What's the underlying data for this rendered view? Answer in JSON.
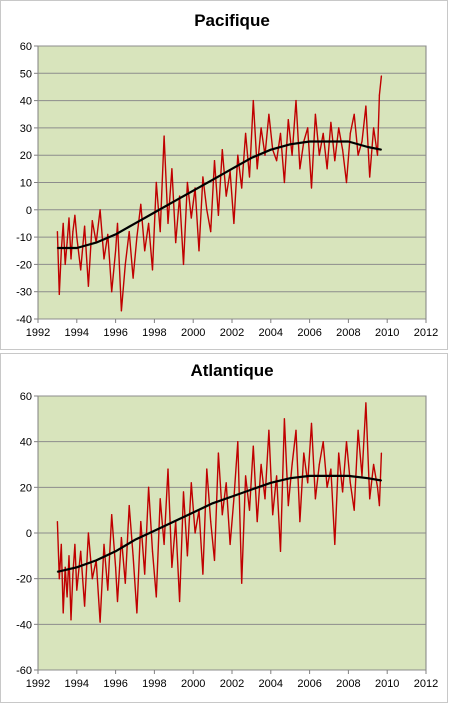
{
  "colors": {
    "plot_background": "#d8e4bc",
    "series": "#c00000",
    "trend": "#000000",
    "grid": "#8c8c8c"
  },
  "chart_data": [
    {
      "type": "line",
      "title": "Pacifique",
      "xlabel": "",
      "ylabel": "",
      "xlim": [
        1992,
        2012
      ],
      "ylim": [
        -40,
        60
      ],
      "xticks": [
        1992,
        1994,
        1996,
        1998,
        2000,
        2002,
        2004,
        2006,
        2008,
        2010,
        2012
      ],
      "yticks": [
        -40,
        -30,
        -20,
        -10,
        0,
        10,
        20,
        30,
        40,
        50,
        60
      ],
      "grid": "horizontal",
      "legend": "none",
      "series": [
        {
          "style": "red-line",
          "x": [
            1993.0,
            1993.1,
            1993.2,
            1993.3,
            1993.4,
            1993.5,
            1993.6,
            1993.7,
            1993.8,
            1993.9,
            1994.0,
            1994.2,
            1994.4,
            1994.6,
            1994.8,
            1995.0,
            1995.2,
            1995.4,
            1995.6,
            1995.8,
            1996.0,
            1996.1,
            1996.3,
            1996.5,
            1996.7,
            1996.9,
            1997.1,
            1997.3,
            1997.5,
            1997.7,
            1997.9,
            1998.1,
            1998.3,
            1998.5,
            1998.7,
            1998.9,
            1999.1,
            1999.3,
            1999.5,
            1999.7,
            1999.9,
            2000.1,
            2000.3,
            2000.5,
            2000.7,
            2000.9,
            2001.1,
            2001.3,
            2001.5,
            2001.7,
            2001.9,
            2002.1,
            2002.3,
            2002.5,
            2002.7,
            2002.9,
            2003.1,
            2003.3,
            2003.5,
            2003.7,
            2003.9,
            2004.1,
            2004.3,
            2004.5,
            2004.7,
            2004.9,
            2005.1,
            2005.3,
            2005.5,
            2005.7,
            2005.9,
            2006.1,
            2006.3,
            2006.5,
            2006.7,
            2006.9,
            2007.1,
            2007.3,
            2007.5,
            2007.7,
            2007.9,
            2008.1,
            2008.3,
            2008.5,
            2008.7,
            2008.9,
            2009.1,
            2009.3,
            2009.5,
            2009.6,
            2009.7
          ],
          "y": [
            -8,
            -31,
            -15,
            -5,
            -20,
            -12,
            -3,
            -18,
            -8,
            -2,
            -10,
            -22,
            -6,
            -28,
            -4,
            -12,
            0,
            -18,
            -9,
            -30,
            -15,
            -5,
            -37,
            -20,
            -8,
            -25,
            -10,
            2,
            -15,
            -5,
            -22,
            10,
            -8,
            27,
            -5,
            15,
            -12,
            5,
            -20,
            10,
            -3,
            8,
            -15,
            12,
            0,
            -8,
            18,
            -2,
            22,
            5,
            14,
            -5,
            20,
            8,
            28,
            12,
            40,
            15,
            30,
            20,
            35,
            22,
            18,
            28,
            10,
            33,
            20,
            40,
            15,
            25,
            30,
            8,
            35,
            20,
            28,
            15,
            32,
            18,
            30,
            22,
            10,
            28,
            35,
            20,
            25,
            38,
            12,
            30,
            20,
            42,
            49
          ]
        },
        {
          "style": "black-trend",
          "x": [
            1993,
            1994,
            1995,
            1996,
            1997,
            1998,
            1999,
            2000,
            2001,
            2002,
            2003,
            2004,
            2005,
            2006,
            2007,
            2008,
            2009,
            2009.7
          ],
          "y": [
            -14,
            -14,
            -12,
            -9,
            -5,
            -1,
            3,
            7,
            11,
            15,
            19,
            22,
            24,
            25,
            25,
            25,
            23,
            22
          ]
        }
      ]
    },
    {
      "type": "line",
      "title": "Atlantique",
      "xlabel": "",
      "ylabel": "",
      "xlim": [
        1992,
        2012
      ],
      "ylim": [
        -60,
        60
      ],
      "xticks": [
        1992,
        1994,
        1996,
        1998,
        2000,
        2002,
        2004,
        2006,
        2008,
        2010,
        2012
      ],
      "yticks": [
        -60,
        -40,
        -20,
        0,
        20,
        40,
        60
      ],
      "grid": "horizontal",
      "legend": "none",
      "series": [
        {
          "style": "red-line",
          "x": [
            1993.0,
            1993.1,
            1993.2,
            1993.3,
            1993.4,
            1993.5,
            1993.6,
            1993.7,
            1993.8,
            1993.9,
            1994.0,
            1994.2,
            1994.4,
            1994.6,
            1994.8,
            1995.0,
            1995.2,
            1995.4,
            1995.6,
            1995.8,
            1996.0,
            1996.1,
            1996.3,
            1996.5,
            1996.7,
            1996.9,
            1997.1,
            1997.3,
            1997.5,
            1997.7,
            1997.9,
            1998.1,
            1998.3,
            1998.5,
            1998.7,
            1998.9,
            1999.1,
            1999.3,
            1999.5,
            1999.7,
            1999.9,
            2000.1,
            2000.3,
            2000.5,
            2000.7,
            2000.9,
            2001.1,
            2001.3,
            2001.5,
            2001.7,
            2001.9,
            2002.1,
            2002.3,
            2002.5,
            2002.7,
            2002.9,
            2003.1,
            2003.3,
            2003.5,
            2003.7,
            2003.9,
            2004.1,
            2004.3,
            2004.5,
            2004.7,
            2004.9,
            2005.1,
            2005.3,
            2005.5,
            2005.7,
            2005.9,
            2006.1,
            2006.3,
            2006.5,
            2006.7,
            2006.9,
            2007.1,
            2007.3,
            2007.5,
            2007.7,
            2007.9,
            2008.1,
            2008.3,
            2008.5,
            2008.7,
            2008.9,
            2009.1,
            2009.3,
            2009.5,
            2009.6,
            2009.7
          ],
          "y": [
            5,
            -20,
            -5,
            -35,
            -15,
            -28,
            -10,
            -38,
            -18,
            -5,
            -25,
            -8,
            -32,
            0,
            -20,
            -12,
            -39,
            -5,
            -25,
            8,
            -15,
            -30,
            -2,
            -22,
            12,
            -10,
            -35,
            5,
            -18,
            20,
            -8,
            -28,
            15,
            -5,
            28,
            -15,
            5,
            -30,
            18,
            -10,
            22,
            0,
            10,
            -18,
            28,
            5,
            -12,
            35,
            8,
            22,
            -5,
            15,
            40,
            -22,
            25,
            10,
            38,
            5,
            30,
            15,
            45,
            8,
            25,
            -8,
            50,
            12,
            30,
            45,
            5,
            35,
            22,
            48,
            15,
            30,
            40,
            20,
            28,
            -5,
            35,
            18,
            40,
            22,
            10,
            45,
            25,
            57,
            15,
            30,
            20,
            12,
            35
          ]
        },
        {
          "style": "black-trend",
          "x": [
            1993,
            1994,
            1995,
            1996,
            1997,
            1998,
            1999,
            2000,
            2001,
            2002,
            2003,
            2004,
            2005,
            2006,
            2007,
            2008,
            2009,
            2009.7
          ],
          "y": [
            -17,
            -15,
            -12,
            -8,
            -3,
            1,
            5,
            9,
            13,
            16,
            19,
            22,
            24,
            25,
            25,
            25,
            24,
            23
          ]
        }
      ]
    }
  ]
}
